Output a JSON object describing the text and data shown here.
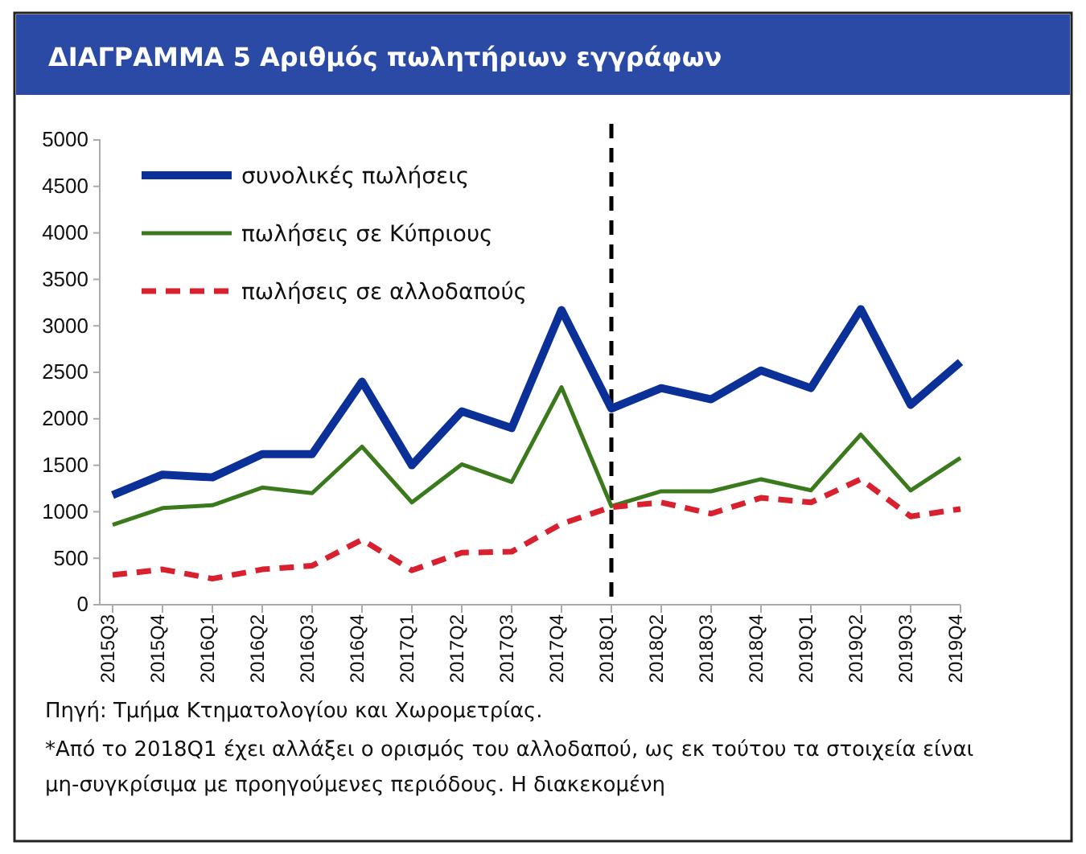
{
  "chart_data": {
    "type": "line",
    "title": "ΔΙΑΓΡΑΜΜΑ 5 Αριθμός πωλητήριων εγγράφων",
    "categories": [
      "2015Q3",
      "2015Q4",
      "2016Q1",
      "2016Q2",
      "2016Q3",
      "2016Q4",
      "2017Q1",
      "2017Q2",
      "2017Q3",
      "2017Q4",
      "2018Q1",
      "2018Q2",
      "2018Q3",
      "2018Q4",
      "2019Q1",
      "2019Q2",
      "2019Q3",
      "2019Q4"
    ],
    "series": [
      {
        "name": "συνολικές πωλήσεις",
        "color": "#0b3199",
        "line_style": "solid",
        "values": [
          1180,
          1400,
          1370,
          1620,
          1620,
          2400,
          1500,
          2080,
          1900,
          3170,
          2110,
          2330,
          2210,
          2520,
          2330,
          3180,
          2150,
          2610
        ]
      },
      {
        "name": "πωλήσεις σε Κύπριους",
        "color": "#3b7a1c",
        "line_style": "solid",
        "values": [
          860,
          1040,
          1070,
          1260,
          1200,
          1700,
          1100,
          1510,
          1320,
          2340,
          1060,
          1220,
          1220,
          1350,
          1230,
          1830,
          1230,
          1580
        ]
      },
      {
        "name": "πωλήσεις σε αλλοδαπούς",
        "color": "#d8202e",
        "line_style": "dashed",
        "values": [
          320,
          380,
          280,
          380,
          420,
          700,
          370,
          560,
          570,
          870,
          1050,
          1100,
          980,
          1150,
          1100,
          1350,
          950,
          1030
        ]
      }
    ],
    "ylim": [
      0,
      5000
    ],
    "yticks": [
      0,
      500,
      1000,
      1500,
      2000,
      2500,
      3000,
      3500,
      4000,
      4500,
      5000
    ],
    "grid": false,
    "legend": "top left",
    "marker": "none",
    "ref_lines": [
      {
        "axis": "x",
        "value": "2018Q1",
        "color": "#000000",
        "line_style": "dashed"
      }
    ],
    "annotations": [
      "Πηγή: Τμήμα Κτηματολογίου και Χωρομετρίας.",
      "*Από το 2018Q1 έχει αλλάξει ο ορισμός του αλλοδαπού, ως εκ τούτου τα στοιχεία είναι μη-συγκρίσιμα με προηγούμενες περιόδους. Η διακεκομένη"
    ]
  }
}
